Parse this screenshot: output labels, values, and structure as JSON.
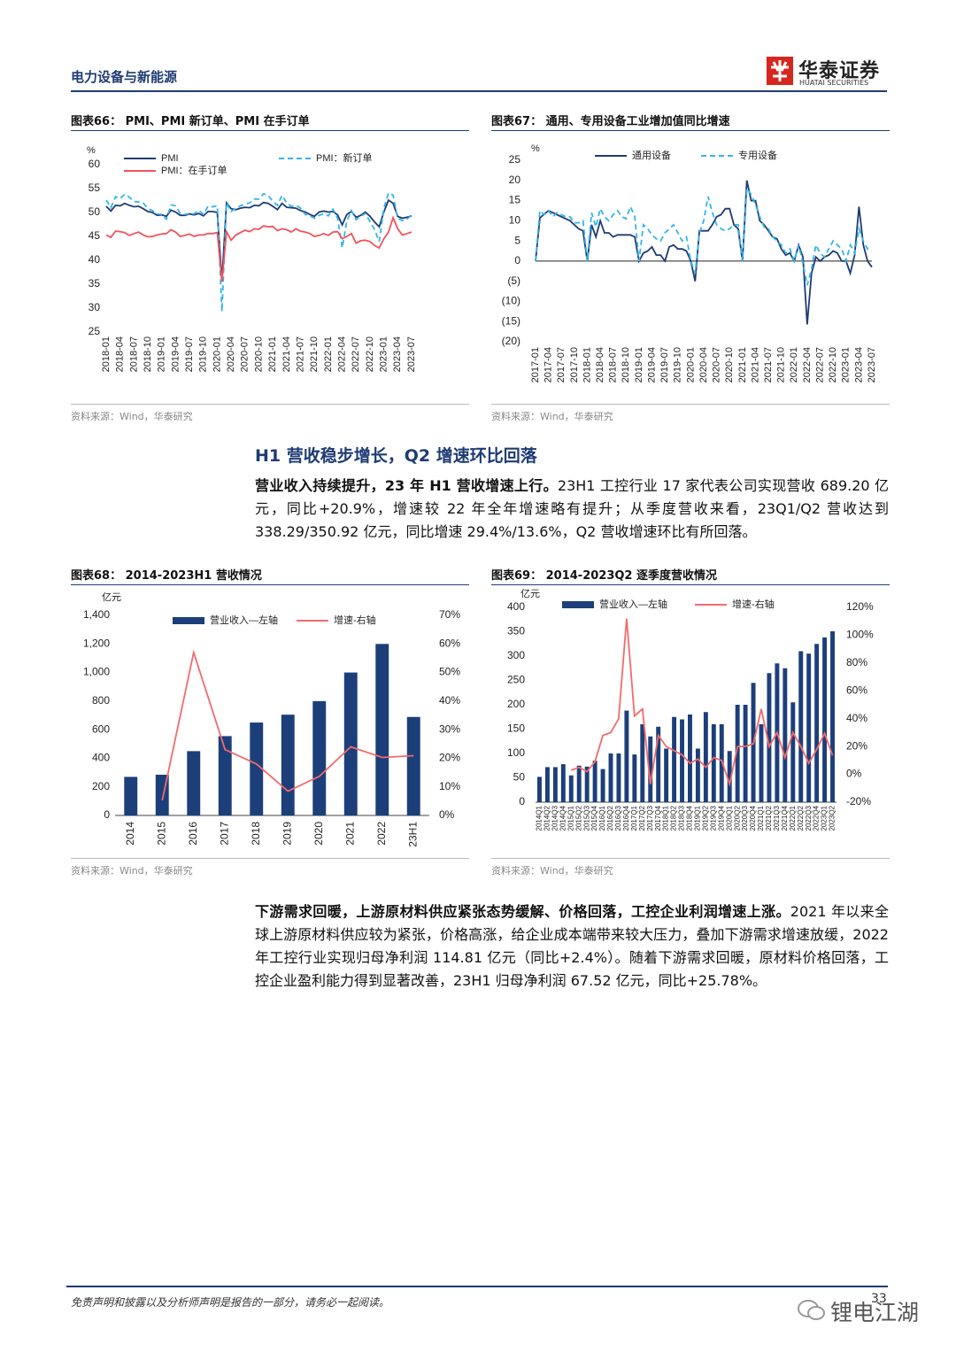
{
  "header": {
    "section": "电力设备与新能源",
    "logo": "华泰证券",
    "logo_en": "HUATAI SECURITIES"
  },
  "chart_data": [
    {
      "type": "line",
      "title": "图表66：  PMI、PMI 新订单、PMI 在手订单",
      "source": "资料来源：Wind，华泰研究",
      "y_label": "%",
      "categories": [
        "2018-01",
        null,
        null,
        "2018-04",
        null,
        null,
        "2018-07",
        null,
        null,
        "2018-10",
        null,
        null,
        "2019-01",
        null,
        null,
        "2019-04",
        null,
        null,
        "2019-07",
        null,
        null,
        "2019-10",
        null,
        null,
        "2020-01",
        null,
        null,
        "2020-04",
        null,
        null,
        "2020-07",
        null,
        null,
        "2020-10",
        null,
        null,
        "2021-01",
        null,
        null,
        "2021-04",
        null,
        null,
        "2021-07",
        null,
        null,
        "2021-10",
        null,
        null,
        "2022-01",
        null,
        null,
        "2022-04",
        null,
        null,
        "2022-07",
        null,
        null,
        "2022-10",
        null,
        null,
        "2023-01",
        null,
        null,
        "2023-04",
        null,
        null,
        "2023-07"
      ],
      "ylim": [
        25,
        60
      ],
      "yticks": [
        25,
        30,
        35,
        40,
        45,
        50,
        55,
        60
      ],
      "series": [
        {
          "name": "PMI",
          "color": "#1f3b73",
          "dash": false,
          "values": [
            51.3,
            50.3,
            51.5,
            51.4,
            51.9,
            51.5,
            51.2,
            51.3,
            50.8,
            50.2,
            50.0,
            49.4,
            49.5,
            49.2,
            50.5,
            50.1,
            49.4,
            49.4,
            49.7,
            49.5,
            49.8,
            49.3,
            50.2,
            50.2,
            50.0,
            35.7,
            52.0,
            50.8,
            50.6,
            50.9,
            51.1,
            51.0,
            51.5,
            51.4,
            52.1,
            51.9,
            51.3,
            50.6,
            51.9,
            51.1,
            51.0,
            50.9,
            50.4,
            50.1,
            49.6,
            49.2,
            50.1,
            50.3,
            50.1,
            50.2,
            49.5,
            47.4,
            49.6,
            50.2,
            49.0,
            49.4,
            50.1,
            49.2,
            48.0,
            47.0,
            50.1,
            52.6,
            51.9,
            49.2,
            48.8,
            49.0,
            49.3
          ]
        },
        {
          "name": "PMI：新订单",
          "color": "#33b5e8",
          "dash": true,
          "values": [
            52.6,
            51.0,
            53.3,
            52.9,
            53.8,
            53.2,
            52.3,
            52.2,
            52.0,
            50.8,
            50.4,
            49.7,
            49.6,
            48.6,
            51.6,
            51.4,
            49.8,
            49.6,
            49.8,
            49.7,
            50.5,
            49.6,
            51.3,
            51.2,
            51.4,
            29.3,
            52.0,
            50.2,
            50.9,
            51.4,
            51.7,
            52.0,
            52.8,
            52.8,
            53.9,
            53.6,
            52.3,
            51.5,
            53.6,
            52.0,
            51.3,
            51.5,
            50.9,
            49.6,
            49.3,
            48.8,
            49.4,
            49.7,
            49.3,
            50.7,
            48.8,
            42.6,
            48.2,
            50.4,
            48.5,
            49.2,
            49.8,
            48.1,
            46.4,
            43.9,
            50.9,
            54.1,
            53.6,
            48.8,
            48.3,
            48.6,
            49.5
          ]
        },
        {
          "name": "PMI：在手订单",
          "color": "#f0545a",
          "dash": false,
          "values": [
            45.3,
            44.8,
            46.1,
            46.0,
            45.8,
            45.2,
            45.6,
            45.9,
            45.3,
            44.9,
            45.0,
            45.3,
            45.5,
            45.6,
            46.4,
            45.9,
            45.0,
            45.2,
            45.5,
            45.0,
            45.3,
            45.3,
            45.6,
            45.6,
            45.8,
            35.5,
            46.0,
            44.2,
            45.3,
            45.8,
            46.3,
            46.0,
            46.6,
            46.5,
            47.2,
            47.0,
            47.1,
            46.2,
            46.6,
            46.4,
            45.9,
            46.6,
            46.1,
            45.9,
            45.6,
            45.0,
            45.2,
            45.6,
            45.2,
            45.9,
            46.0,
            44.5,
            45.0,
            45.6,
            43.6,
            44.1,
            44.2,
            43.9,
            43.1,
            42.6,
            44.5,
            45.9,
            48.9,
            46.6,
            45.3,
            45.6,
            45.9
          ]
        }
      ]
    },
    {
      "type": "line",
      "title": "图表67：  通用、专用设备工业增加值同比增速",
      "source": "资料来源：Wind，华泰研究",
      "y_label": "%",
      "categories": [
        "2017-01",
        null,
        null,
        "2017-04",
        null,
        null,
        "2017-07",
        null,
        null,
        "2017-10",
        null,
        null,
        "2018-01",
        null,
        null,
        "2018-04",
        null,
        null,
        "2018-07",
        null,
        null,
        "2018-10",
        null,
        null,
        "2019-01",
        null,
        null,
        "2019-04",
        null,
        null,
        "2019-07",
        null,
        null,
        "2019-10",
        null,
        null,
        "2020-01",
        null,
        null,
        "2020-04",
        null,
        null,
        "2020-07",
        null,
        null,
        "2020-10",
        null,
        null,
        "2021-01",
        null,
        null,
        "2021-04",
        null,
        null,
        "2021-07",
        null,
        null,
        "2021-10",
        null,
        null,
        "2022-01",
        null,
        null,
        "2022-04",
        null,
        null,
        "2022-07",
        null,
        null,
        "2022-10",
        null,
        null,
        "2023-01",
        null,
        null,
        "2023-04",
        null,
        null,
        "2023-07"
      ],
      "ylim": [
        -20,
        25
      ],
      "yticks": [
        {
          "value": -20,
          "label": "(20)"
        },
        {
          "value": -15,
          "label": "(15)"
        },
        {
          "value": -10,
          "label": "(10)"
        },
        {
          "value": -5,
          "label": "(5)"
        },
        0,
        5,
        10,
        15,
        20,
        25
      ],
      "series": [
        {
          "name": "通用设备",
          "color": "#1f3b73",
          "dash": false,
          "values": [
            0,
            10.7,
            11.6,
            12.5,
            12,
            11.5,
            11,
            10.5,
            10,
            9,
            8,
            7.5,
            0,
            9,
            6,
            10,
            7,
            7,
            6,
            6.5,
            6.5,
            6.5,
            6.5,
            6,
            0,
            2,
            2.5,
            3.5,
            1.5,
            1.5,
            0,
            3.5,
            4,
            3,
            3,
            2.5,
            0,
            -5,
            7.5,
            7.5,
            7.5,
            9,
            11,
            11.5,
            13,
            13,
            9,
            8,
            0,
            20,
            15,
            15,
            10,
            9,
            7.5,
            6,
            5.5,
            3,
            1.5,
            2,
            0,
            4,
            1,
            -15.7,
            -3,
            1,
            0,
            1,
            1.5,
            2.5,
            2,
            0,
            0,
            -3,
            1.5,
            13.5,
            4,
            0,
            -1.5
          ]
        },
        {
          "name": "专用设备",
          "color": "#33b5e8",
          "dash": true,
          "values": [
            0,
            12.5,
            11.5,
            12.5,
            11,
            12,
            11.5,
            11,
            11,
            9.5,
            9.5,
            10,
            0,
            12,
            8.5,
            13,
            11,
            10,
            11.5,
            12.5,
            11,
            10.5,
            13.5,
            11,
            0,
            9,
            8,
            6.5,
            5.5,
            5,
            7,
            8,
            9,
            7,
            5,
            6,
            0,
            -3,
            7,
            10,
            16,
            12,
            9,
            8,
            7.5,
            8,
            9,
            9,
            0,
            18,
            16.5,
            14,
            11,
            8.5,
            8,
            6,
            5,
            4,
            2,
            3,
            0,
            4,
            -0.5,
            -6,
            -2,
            4,
            2,
            1,
            3,
            5,
            4,
            3,
            0,
            4,
            2,
            8,
            5,
            3,
            2.5
          ]
        }
      ]
    },
    {
      "type": "bar",
      "title": "图表68：  2014-2023H1 营收情况",
      "source": "资料来源：Wind，华泰研究",
      "y_label": "亿元",
      "categories": [
        "2014",
        "2015",
        "2016",
        "2017",
        "2018",
        "2019",
        "2020",
        "2021",
        "2022",
        "23H1"
      ],
      "ylim": [
        0,
        1400
      ],
      "yticks": [
        0,
        200,
        400,
        600,
        800,
        {
          "value": 1000,
          "label": "1,000"
        },
        {
          "value": 1200,
          "label": "1,200"
        },
        {
          "value": 1400,
          "label": "1,400"
        }
      ],
      "y2lim": [
        0,
        70
      ],
      "y2ticks": [
        {
          "value": 0,
          "label": "0%"
        },
        {
          "value": 10,
          "label": "10%"
        },
        {
          "value": 20,
          "label": "20%"
        },
        {
          "value": 30,
          "label": "30%"
        },
        {
          "value": 40,
          "label": "40%"
        },
        {
          "value": 50,
          "label": "50%"
        },
        {
          "value": 60,
          "label": "60%"
        },
        {
          "value": 70,
          "label": "70%"
        }
      ],
      "series": [
        {
          "name": "营业收入—左轴",
          "color": "#1c3f7a",
          "type": "bar",
          "values": [
            270,
            285,
            450,
            555,
            650,
            705,
            800,
            1000,
            1200,
            689.2
          ]
        },
        {
          "name": "增速-右轴",
          "color": "#f36b6b",
          "type": "line",
          "axis": "y2",
          "values": [
            null,
            5.3,
            57,
            23,
            18,
            8.5,
            13.7,
            24,
            20.3,
            20.9
          ]
        }
      ]
    },
    {
      "type": "bar",
      "title": "图表69：  2014-2023Q2 逐季度营收情况",
      "source": "资料来源：Wind，华泰研究",
      "y_label": "亿元",
      "categories": [
        "2014Q1",
        "2014Q2",
        "2014Q3",
        "2014Q4",
        "2015Q1",
        "2015Q2",
        "2015Q3",
        "2015Q4",
        "2016Q1",
        "2016Q2",
        "2016Q3",
        "2016Q4",
        "2017Q1",
        "2017Q2",
        "2017Q3",
        "2017Q4",
        "2018Q1",
        "2018Q2",
        "2018Q3",
        "2018Q4",
        "2019Q1",
        "2019Q2",
        "2019Q3",
        "2019Q4",
        "2020Q1",
        "2020Q2",
        "2020Q3",
        "2020Q4",
        "2021Q1",
        "2021Q2",
        "2021Q3",
        "2021Q4",
        "2022Q1",
        "2022Q2",
        "2022Q3",
        "2022Q4",
        "2023Q1",
        "2023Q2"
      ],
      "ylim": [
        0,
        400
      ],
      "yticks": [
        0,
        50,
        100,
        150,
        200,
        250,
        300,
        350,
        400
      ],
      "y2lim": [
        -20,
        120
      ],
      "y2ticks": [
        {
          "value": -20,
          "label": "-20%"
        },
        {
          "value": 0,
          "label": "0%"
        },
        {
          "value": 20,
          "label": "20%"
        },
        {
          "value": 40,
          "label": "40%"
        },
        {
          "value": 60,
          "label": "60%"
        },
        {
          "value": 80,
          "label": "80%"
        },
        {
          "value": 100,
          "label": "100%"
        },
        {
          "value": 120,
          "label": "120%"
        }
      ],
      "series": [
        {
          "name": "营业收入—左轴",
          "color": "#1c3f7a",
          "type": "bar",
          "values": [
            52,
            72,
            72,
            78,
            55,
            75,
            73,
            85,
            68,
            100,
            100,
            188,
            98,
            160,
            135,
            155,
            110,
            175,
            170,
            180,
            110,
            185,
            160,
            160,
            105,
            200,
            200,
            245,
            160,
            265,
            285,
            275,
            205,
            310,
            305,
            325,
            338.29,
            350.92
          ]
        },
        {
          "name": "增速-右轴",
          "color": "#f36b6b",
          "type": "line",
          "axis": "y2",
          "values": [
            null,
            null,
            null,
            null,
            3,
            5,
            2,
            9,
            28,
            30,
            40,
            112,
            42,
            47,
            -7,
            28,
            20,
            17,
            14,
            8,
            11,
            5,
            12,
            10,
            -7,
            20,
            20,
            22,
            47,
            20,
            30,
            12,
            30,
            20,
            8,
            18,
            29.4,
            13.6
          ]
        }
      ]
    }
  ],
  "heading": "H1 营收稳步增长，Q2 增速环比回落",
  "paragraphs": [
    {
      "lead": "营业收入持续提升，23 年 H1 营收增速上行。",
      "body": "23H1 工控行业 17 家代表公司实现营收 689.20 亿元，同比+20.9%，增速较 22 年全年增速略有提升；从季度营收来看，23Q1/Q2 营收达到 338.29/350.92 亿元，同比增速 29.4%/13.6%，Q2 营收增速环比有所回落。"
    },
    {
      "lead": "下游需求回暖，上游原材料供应紧张态势缓解、价格回落，工控企业利润增速上涨。",
      "body": "2021 年以来全球上游原材料供应较为紧张，价格高涨，给企业成本端带来较大压力，叠加下游需求增速放缓，2022 年工控行业实现归母净利润 114.81 亿元（同比+2.4%）。随着下游需求回暖，原材料价格回落，工控企业盈利能力得到显著改善，23H1 归母净利润 67.52 亿元，同比+25.78%。"
    }
  ],
  "footer": {
    "disclaimer": "免责声明和披露以及分析师声明是报告的一部分，请务必一起阅读。",
    "page": "33",
    "watermark": "锂电江湖"
  }
}
